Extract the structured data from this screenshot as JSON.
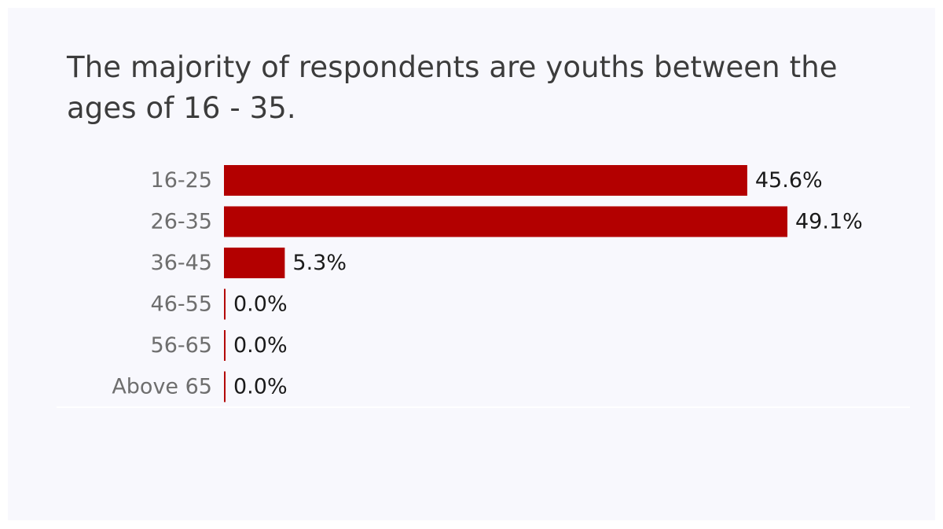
{
  "chart_data": {
    "type": "bar",
    "orientation": "horizontal",
    "title": "The majority of respondents are youths between the ages of 16 - 35.",
    "categories": [
      "16-25",
      "26-35",
      "36-45",
      "46-55",
      "56-65",
      "Above 65"
    ],
    "values": [
      45.6,
      49.1,
      5.3,
      0.0,
      0.0,
      0.0
    ],
    "value_labels": [
      "45.6%",
      "49.1%",
      "5.3%",
      "0.0%",
      "0.0%",
      "0.0%"
    ],
    "xlabel": "",
    "ylabel": "",
    "xlim": [
      0,
      49.1
    ],
    "grid": false,
    "legend": "none",
    "bar_color": "#b30000"
  }
}
